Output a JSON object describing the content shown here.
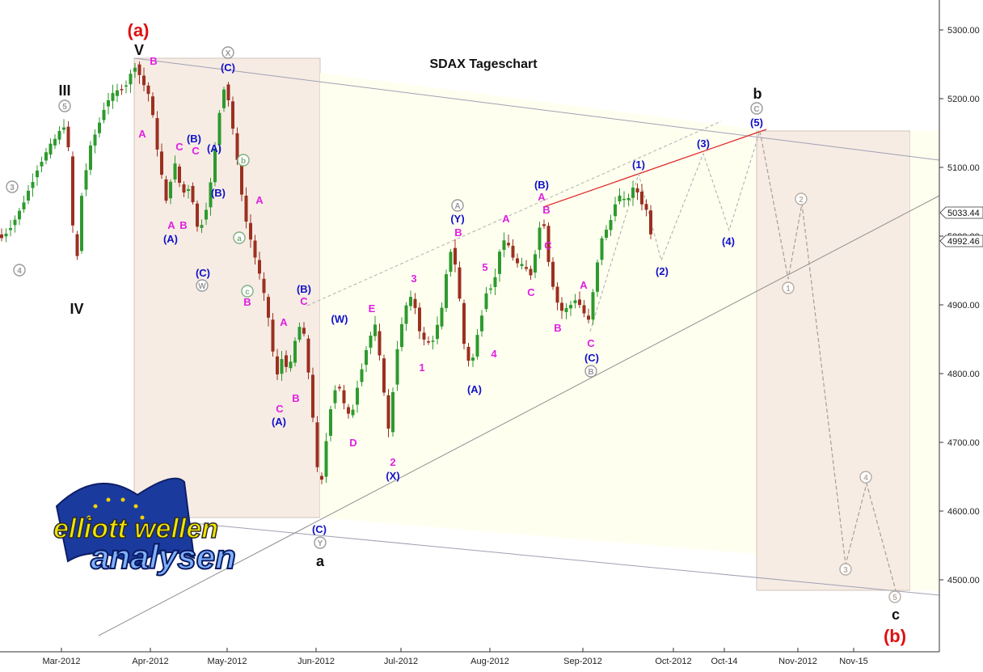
{
  "chart_data": {
    "type": "candlestick",
    "title": "SDAX Tageschart",
    "ylim": [
      4420,
      5340
    ],
    "yticks": [
      "4500.00",
      "4600.00",
      "4700.00",
      "4800.00",
      "4900.00",
      "5000.00",
      "5100.00",
      "5200.00",
      "5300.00"
    ],
    "xticks": [
      "Mar-2012",
      "Apr-2012",
      "May-2012",
      "Jun-2012",
      "Jul-2012",
      "Aug-2012",
      "Sep-2012",
      "Oct-2012",
      "Oct-14",
      "Nov-2012",
      "Nov-15"
    ],
    "price_markers": [
      "5033.44",
      "4992.46"
    ],
    "grid": false,
    "colors": {
      "up": "#2e9a2e",
      "down": "#9b3020",
      "background": "#fffff0",
      "panel": "#f6ece4",
      "target_line": "#e02020",
      "logo_blue": "#14329a",
      "logo_yellow": "#f0d000"
    },
    "wave_labels": {
      "black": [
        "III",
        "IV",
        "V",
        "a",
        "b",
        "c"
      ],
      "red": [
        "(a)",
        "(b)"
      ],
      "blue": [
        "(A)",
        "(B)",
        "(C)",
        "(A)",
        "(B)",
        "(C)",
        "(A)",
        "(B)",
        "(W)",
        "(X)",
        "(Y)",
        "(A)",
        "(B)",
        "(C)",
        "(1)",
        "(2)",
        "(3)",
        "(4)",
        "(5)",
        "(C)"
      ],
      "magenta": [
        "A",
        "B",
        "C",
        "A",
        "B",
        "C",
        "A",
        "B",
        "C",
        "A",
        "B",
        "C",
        "D",
        "E",
        "1",
        "2",
        "3",
        "4",
        "5",
        "A",
        "B",
        "C",
        "A",
        "B",
        "C",
        "A",
        "B",
        "C"
      ],
      "gray_circled": [
        "3",
        "4",
        "5",
        "X",
        "W",
        "Y",
        "A",
        "B",
        "C",
        "b",
        "a",
        "c",
        "1",
        "2",
        "3",
        "4",
        "5"
      ]
    }
  },
  "logo": {
    "line1": "elliott wellen",
    "line2": "analysen"
  }
}
